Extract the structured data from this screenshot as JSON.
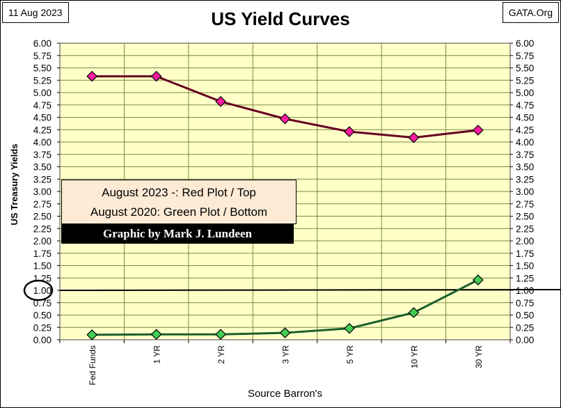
{
  "header": {
    "date": "11 Aug 2023",
    "title": "US Yield Curves",
    "source": "GATA.Org"
  },
  "legend": {
    "line1": "August 2023 -: Red Plot / Top",
    "line2": "August 2020: Green Plot / Bottom"
  },
  "credit": "Graphic by Mark J. Lundeen",
  "colors": {
    "plot_background": "#ffffc8",
    "grid": "#7a8a3a",
    "red_series_line": "#660022",
    "red_series_marker": "#ff1aa0",
    "green_series_line": "#1a5e2a",
    "green_series_marker": "#44cc55",
    "legend_background": "#fdebd6"
  },
  "chart_data": {
    "type": "line",
    "title": "US Yield Curves",
    "xlabel": "Source Barron's",
    "ylabel": "US Treasury Yields",
    "categories": [
      "Fed Funds",
      "1 YR",
      "2 YR",
      "3 YR",
      "5 YR",
      "10 YR",
      "30 YR"
    ],
    "ylim": [
      0,
      6
    ],
    "ytick_step": 0.25,
    "ytick_labels": [
      "0.00",
      "0.25",
      "0.50",
      "0.75",
      "1.00",
      "1.25",
      "1.50",
      "1.75",
      "2.00",
      "2.25",
      "2.50",
      "2.75",
      "3.00",
      "3.25",
      "3.50",
      "3.75",
      "4.00",
      "4.25",
      "4.50",
      "4.75",
      "5.00",
      "5.25",
      "5.50",
      "5.75",
      "6.00"
    ],
    "grid": true,
    "secondary_y_axis": true,
    "reference_line": {
      "y": 1.0,
      "circled_label": "1.00"
    },
    "series": [
      {
        "values": [
          5.33,
          5.33,
          4.82,
          4.47,
          4.21,
          4.09,
          4.24
        ]
      },
      {
        "values": [
          0.1,
          0.11,
          0.11,
          0.14,
          0.23,
          0.55,
          1.21
        ]
      }
    ]
  }
}
